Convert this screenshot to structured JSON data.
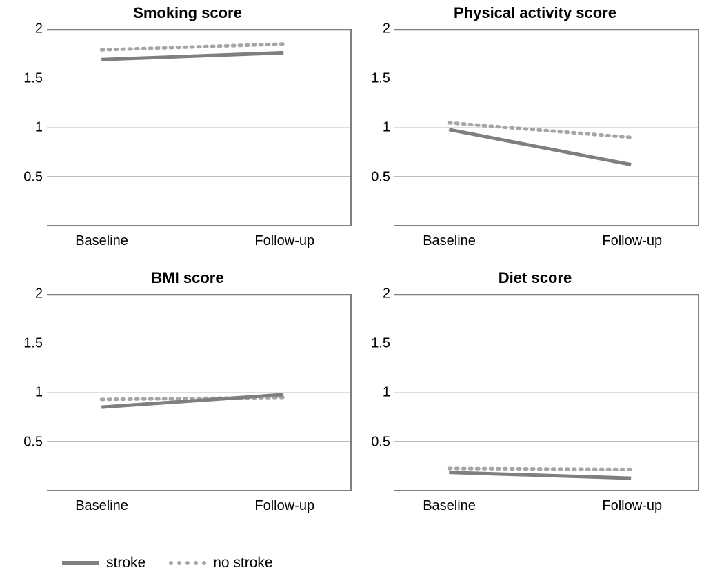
{
  "layout": {
    "rows": 2,
    "cols": 2,
    "background_color": "#ffffff"
  },
  "axes": {
    "ylim": [
      0,
      2
    ],
    "yticks": [
      0.5,
      1,
      1.5,
      2
    ],
    "ytick_labels": [
      "0.5",
      "1",
      "1.5",
      "2"
    ],
    "x_categories": [
      "Baseline",
      "Follow-up"
    ],
    "border_color": "#7f7f7f",
    "grid_color": "#7f7f7f",
    "tick_fontsize": 20,
    "title_fontsize": 22,
    "title_fontweight": 700
  },
  "series_style": {
    "stroke": {
      "label": "stroke",
      "color": "#7f7f7f",
      "dash": "solid",
      "width": 5
    },
    "no_stroke": {
      "label": "no stroke",
      "color": "#a6a6a6",
      "dash": "dotted",
      "width": 5
    }
  },
  "panels": [
    {
      "id": "smoking",
      "title": "Smoking score",
      "series": {
        "stroke": [
          1.7,
          1.77
        ],
        "no_stroke": [
          1.8,
          1.86
        ]
      }
    },
    {
      "id": "physical",
      "title": "Physical activity score",
      "series": {
        "stroke": [
          0.98,
          0.62
        ],
        "no_stroke": [
          1.05,
          0.9
        ]
      }
    },
    {
      "id": "bmi",
      "title": "BMI score",
      "series": {
        "stroke": [
          0.85,
          0.98
        ],
        "no_stroke": [
          0.93,
          0.95
        ]
      }
    },
    {
      "id": "diet",
      "title": "Diet score",
      "series": {
        "stroke": [
          0.18,
          0.12
        ],
        "no_stroke": [
          0.22,
          0.21
        ]
      }
    }
  ],
  "legend": {
    "items": [
      "stroke",
      "no_stroke"
    ]
  }
}
